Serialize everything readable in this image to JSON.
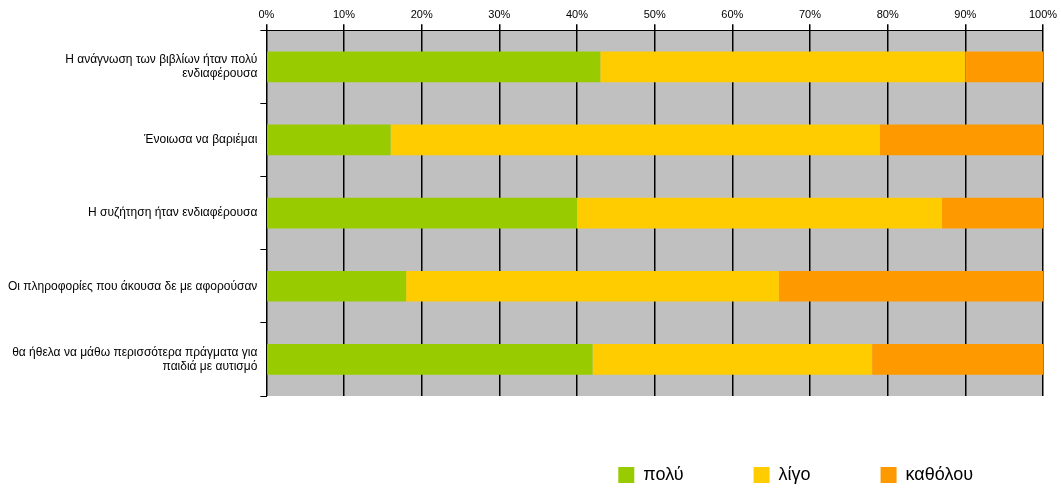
{
  "chart_data": {
    "type": "bar",
    "orientation": "horizontal",
    "stacked": true,
    "categories": [
      "Η ανάγνωση των βιβλίων ήταν πολύ ενδιαφέρουσα",
      "Ένοιωσα να βαριέμαι",
      "Η συζήτηση ήταν ενδιαφέρουσα",
      "Οι πληροφορίες που άκουσα δε με αφορούσαν",
      "θα ήθελα να μάθω περισσότερα πράγματα για παιδιά με αυτισμό"
    ],
    "series": [
      {
        "name": "πολύ",
        "color": "#99cc00",
        "values": [
          43,
          16,
          40,
          18,
          42
        ]
      },
      {
        "name": "λίγο",
        "color": "#ffcc00",
        "values": [
          47,
          63,
          47,
          48,
          36
        ]
      },
      {
        "name": "καθόλου",
        "color": "#ff9900",
        "values": [
          10,
          21,
          13,
          34,
          22
        ]
      }
    ],
    "xlim": [
      0,
      100
    ],
    "xticks": [
      {
        "value": 0,
        "label": "0%"
      },
      {
        "value": 10,
        "label": "10%"
      },
      {
        "value": 20,
        "label": "20%"
      },
      {
        "value": 30,
        "label": "30%"
      },
      {
        "value": 40,
        "label": "40%"
      },
      {
        "value": 50,
        "label": "50%"
      },
      {
        "value": 60,
        "label": "60%"
      },
      {
        "value": 70,
        "label": "70%"
      },
      {
        "value": 80,
        "label": "80%"
      },
      {
        "value": 90,
        "label": "90%"
      },
      {
        "value": 100,
        "label": "100%"
      }
    ],
    "grid": "x",
    "legend": "bottom"
  }
}
